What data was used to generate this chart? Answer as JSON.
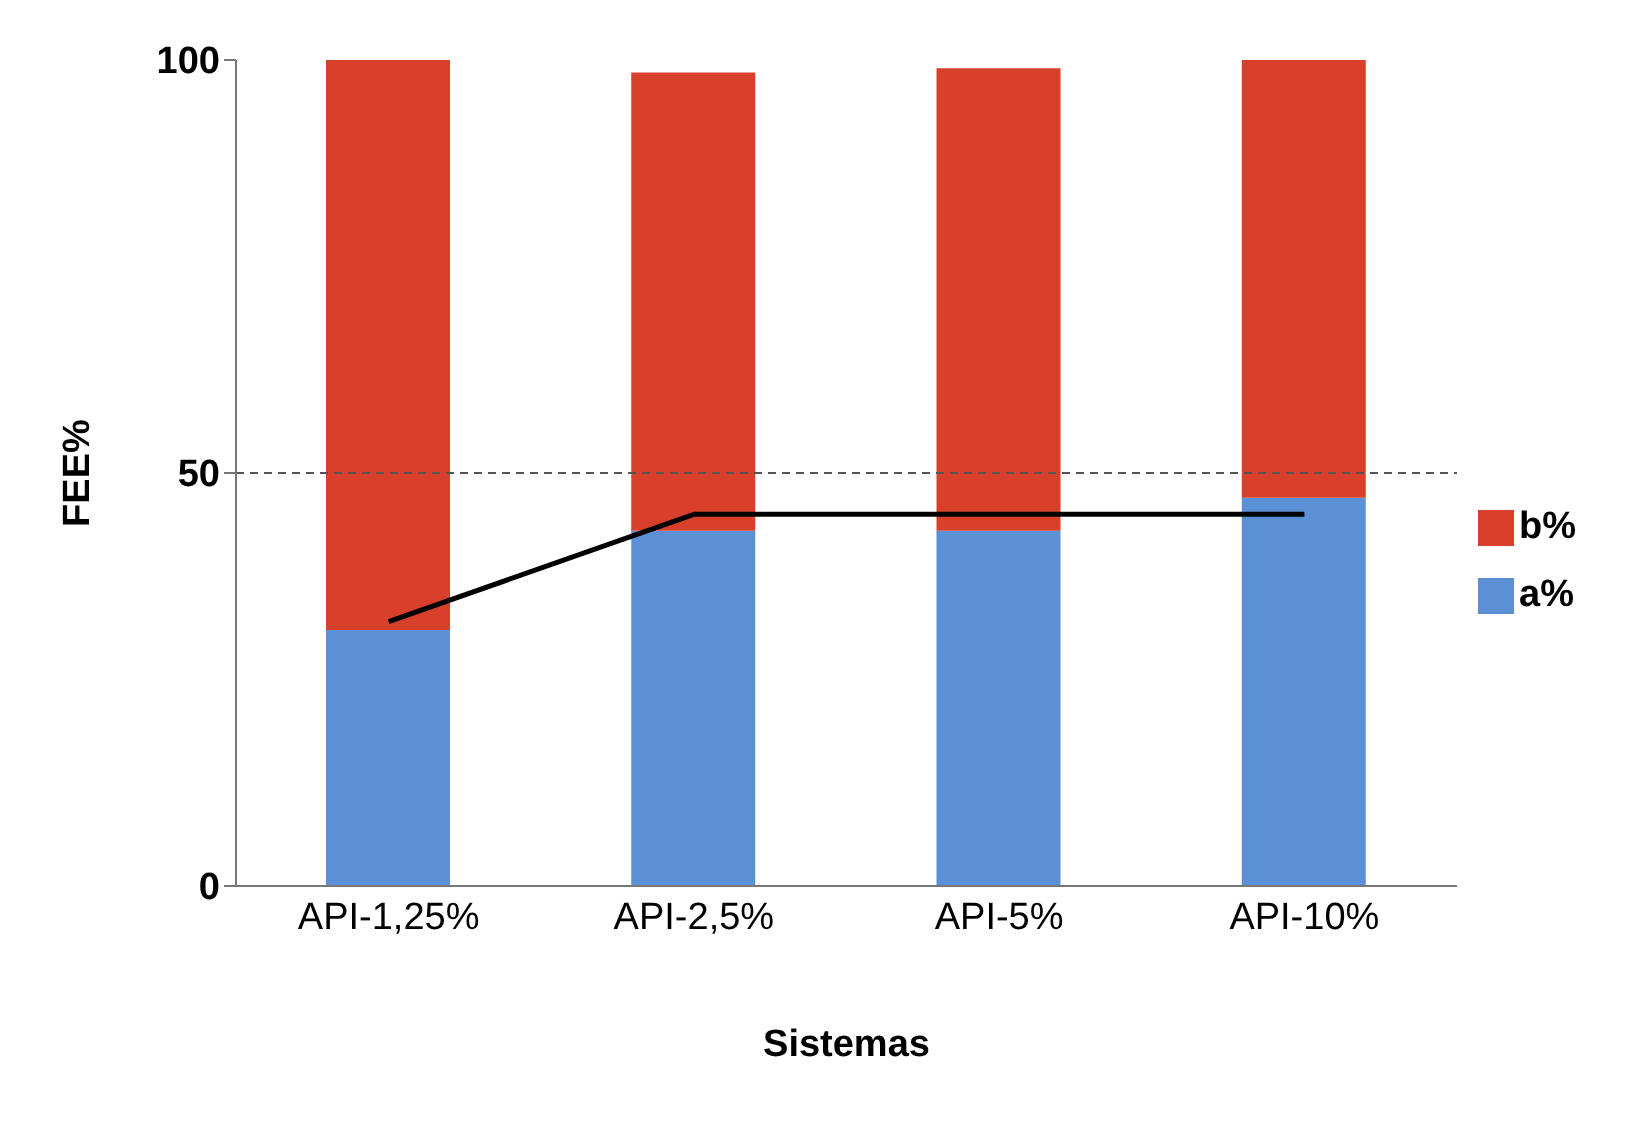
{
  "chart_data": {
    "type": "bar",
    "stacked": true,
    "xlabel": "Sistemas",
    "ylabel": "FEE%",
    "categories": [
      "API-1,25%",
      "API-2,5%",
      "API-5%",
      "API-10%"
    ],
    "series": [
      {
        "name": "a%",
        "color": "#5b8fd6",
        "values": [
          31,
          43,
          43,
          47
        ]
      },
      {
        "name": "b%",
        "color": "#d9402b",
        "values": [
          69,
          55.5,
          56,
          53
        ]
      },
      {
        "type": "line",
        "color": "#000000",
        "values": [
          32,
          45,
          45,
          45
        ]
      }
    ],
    "ylim": [
      0,
      100
    ],
    "yticks": [
      0,
      50,
      100
    ],
    "ref_lines": [
      {
        "axis": "y",
        "value": 50,
        "color": "#555555",
        "line_style": "dashed"
      }
    ],
    "grid": false,
    "legend": "right",
    "marker": "none"
  }
}
